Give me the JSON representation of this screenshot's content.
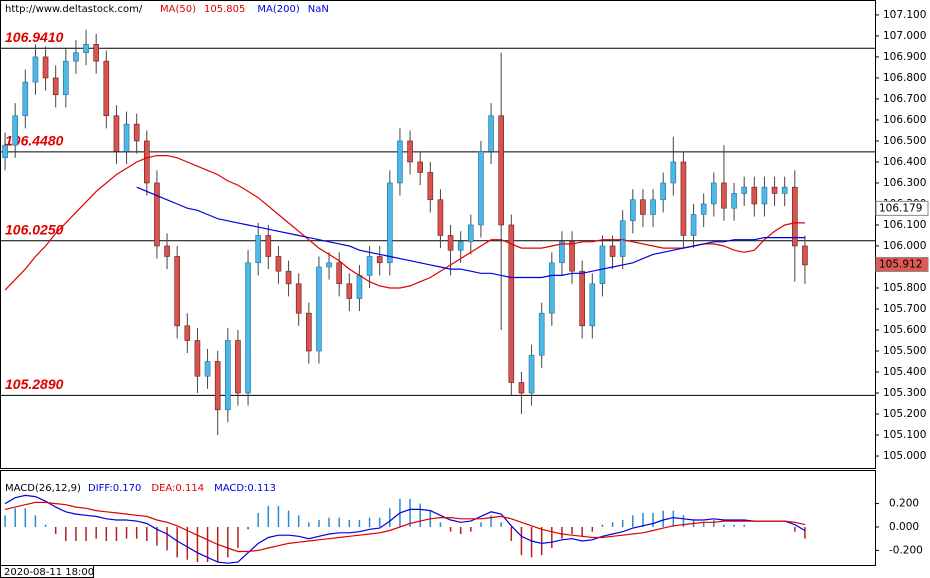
{
  "chart_data": [
    {
      "type": "candlestick",
      "source": "http://www.deltastock.com/",
      "x_label": "2020-08-11 18:00",
      "bull_color": "#4db8e8",
      "bear_color": "#d9534f",
      "open": [
        106.42,
        106.48,
        106.62,
        106.78,
        106.9,
        106.8,
        106.72,
        106.88,
        106.92,
        106.96,
        106.88,
        106.62,
        106.45,
        106.58,
        106.5,
        106.3,
        106.0,
        105.95,
        105.62,
        105.55,
        105.38,
        105.45,
        105.22,
        105.55,
        105.3,
        105.92,
        106.05,
        105.95,
        105.88,
        105.82,
        105.68,
        105.5,
        105.9,
        105.92,
        105.82,
        105.75,
        105.86,
        105.95,
        105.92,
        106.3,
        106.5,
        106.4,
        106.35,
        106.22,
        106.05,
        105.98,
        106.02,
        106.1,
        106.45,
        106.62,
        106.1,
        105.35,
        105.3,
        105.48,
        105.68,
        105.92,
        106.02,
        105.88,
        105.62,
        105.82,
        106.0,
        105.95,
        106.12,
        106.22,
        106.15,
        106.22,
        106.3,
        106.4,
        106.05,
        106.15,
        106.2,
        106.3,
        106.18,
        106.25,
        106.28,
        106.2,
        106.28,
        106.25,
        106.28,
        106.0
      ],
      "high": [
        106.54,
        106.68,
        106.84,
        106.96,
        106.95,
        106.86,
        106.94,
        106.98,
        107.03,
        107.01,
        106.93,
        106.67,
        106.64,
        106.63,
        106.55,
        106.36,
        106.06,
        106.0,
        105.68,
        105.61,
        105.51,
        105.5,
        105.61,
        105.6,
        105.98,
        106.11,
        106.1,
        106.0,
        105.93,
        105.87,
        105.73,
        105.95,
        105.97,
        105.97,
        105.87,
        105.91,
        106.0,
        106.0,
        106.36,
        106.56,
        106.55,
        106.45,
        106.4,
        106.27,
        106.1,
        106.07,
        106.15,
        106.5,
        106.68,
        106.92,
        106.15,
        105.4,
        105.53,
        105.73,
        105.97,
        106.07,
        106.07,
        105.93,
        105.87,
        106.05,
        106.05,
        106.17,
        106.27,
        106.27,
        106.27,
        106.35,
        106.52,
        106.45,
        106.2,
        106.25,
        106.35,
        106.48,
        106.3,
        106.33,
        106.33,
        106.33,
        106.33,
        106.33,
        106.36,
        106.05
      ],
      "low": [
        106.36,
        106.42,
        106.56,
        106.72,
        106.74,
        106.66,
        106.66,
        106.82,
        106.86,
        106.82,
        106.56,
        106.39,
        106.39,
        106.44,
        106.24,
        105.94,
        105.89,
        105.56,
        105.49,
        105.3,
        105.32,
        105.1,
        105.16,
        105.24,
        105.24,
        105.86,
        105.89,
        105.82,
        105.76,
        105.62,
        105.44,
        105.44,
        105.84,
        105.76,
        105.69,
        105.69,
        105.8,
        105.86,
        105.86,
        106.24,
        106.34,
        106.29,
        106.16,
        105.99,
        105.86,
        105.92,
        105.96,
        106.04,
        106.39,
        105.6,
        105.29,
        105.2,
        105.24,
        105.42,
        105.62,
        105.86,
        105.82,
        105.56,
        105.56,
        105.76,
        105.89,
        105.89,
        106.06,
        106.09,
        106.09,
        106.16,
        106.24,
        105.99,
        105.99,
        106.09,
        106.14,
        106.12,
        106.12,
        106.19,
        106.14,
        106.14,
        106.19,
        106.19,
        105.83,
        105.82
      ],
      "close": [
        106.48,
        106.62,
        106.78,
        106.9,
        106.8,
        106.72,
        106.88,
        106.92,
        106.96,
        106.88,
        106.62,
        106.45,
        106.58,
        106.5,
        106.3,
        106.0,
        105.95,
        105.62,
        105.55,
        105.38,
        105.45,
        105.22,
        105.55,
        105.3,
        105.92,
        106.05,
        105.95,
        105.88,
        105.82,
        105.68,
        105.5,
        105.9,
        105.92,
        105.82,
        105.75,
        105.86,
        105.95,
        105.92,
        106.3,
        106.5,
        106.4,
        106.35,
        106.22,
        106.05,
        105.98,
        106.02,
        106.1,
        106.45,
        106.62,
        106.1,
        105.35,
        105.3,
        105.48,
        105.68,
        105.92,
        106.02,
        105.88,
        105.62,
        105.82,
        106.0,
        105.95,
        106.12,
        106.22,
        106.15,
        106.22,
        106.3,
        106.4,
        106.05,
        106.15,
        106.2,
        106.3,
        106.18,
        106.25,
        106.28,
        106.2,
        106.28,
        106.25,
        106.28,
        106.0,
        105.91
      ],
      "series": [
        {
          "name": "MA(50)",
          "legend_value": 105.805,
          "color": "#e00000",
          "values": [
            105.79,
            105.84,
            105.89,
            105.95,
            106.0,
            106.06,
            106.11,
            106.16,
            106.21,
            106.26,
            106.3,
            106.34,
            106.37,
            106.4,
            106.42,
            106.43,
            106.43,
            106.42,
            106.4,
            106.38,
            106.36,
            106.34,
            106.31,
            106.29,
            106.26,
            106.23,
            106.19,
            106.15,
            106.11,
            106.07,
            106.03,
            105.99,
            105.96,
            105.93,
            105.89,
            105.86,
            105.83,
            105.81,
            105.8,
            105.8,
            105.81,
            105.83,
            105.85,
            105.88,
            105.91,
            105.94,
            105.97,
            106.0,
            106.03,
            106.03,
            106.01,
            105.99,
            105.99,
            105.99,
            106.0,
            106.01,
            106.01,
            106.02,
            106.02,
            106.03,
            106.03,
            106.03,
            106.02,
            106.01,
            106.0,
            105.99,
            105.99,
            105.99,
            106.0,
            106.01,
            106.01,
            106.0,
            105.98,
            105.97,
            105.98,
            106.03,
            106.07,
            106.1,
            106.11,
            106.11
          ]
        },
        {
          "name": "MA(200)",
          "legend_value": "NaN",
          "color": "#0000e0",
          "values": [
            null,
            null,
            null,
            null,
            null,
            null,
            null,
            null,
            null,
            null,
            null,
            null,
            null,
            106.28,
            106.26,
            106.24,
            106.22,
            106.2,
            106.18,
            106.17,
            106.15,
            106.13,
            106.12,
            106.11,
            106.1,
            106.09,
            106.08,
            106.07,
            106.06,
            106.05,
            106.04,
            106.03,
            106.02,
            106.01,
            106.0,
            105.98,
            105.97,
            105.96,
            105.95,
            105.94,
            105.93,
            105.92,
            105.91,
            105.9,
            105.89,
            105.89,
            105.88,
            105.87,
            105.87,
            105.86,
            105.85,
            105.85,
            105.85,
            105.85,
            105.86,
            105.86,
            105.87,
            105.87,
            105.88,
            105.89,
            105.9,
            105.91,
            105.92,
            105.94,
            105.96,
            105.97,
            105.98,
            105.99,
            106.0,
            106.01,
            106.02,
            106.02,
            106.03,
            106.03,
            106.03,
            106.04,
            106.04,
            106.04,
            106.04,
            106.04
          ]
        }
      ],
      "levels": [
        {
          "value": 106.941,
          "label": "106.9410"
        },
        {
          "value": 106.448,
          "label": "106.4480"
        },
        {
          "value": 106.025,
          "label": "106.0250"
        },
        {
          "value": 105.289,
          "label": "105.2890"
        }
      ],
      "price_markers": [
        {
          "value": 106.179,
          "color": "#ffffff"
        },
        {
          "value": 105.912,
          "color": "#e05a55"
        }
      ],
      "ylim": [
        104.943,
        107.171
      ],
      "yticks": [
        {
          "value": 107.1,
          "label": "107.100"
        },
        {
          "value": 107.0,
          "label": "107.000"
        },
        {
          "value": 106.9,
          "label": "106.900"
        },
        {
          "value": 106.8,
          "label": "106.800"
        },
        {
          "value": 106.7,
          "label": "106.700"
        },
        {
          "value": 106.6,
          "label": "106.600"
        },
        {
          "value": 106.5,
          "label": "106.500"
        },
        {
          "value": 106.4,
          "label": "106.400"
        },
        {
          "value": 106.3,
          "label": "106.300"
        },
        {
          "value": 106.2,
          "label": "106.200"
        },
        {
          "value": 106.1,
          "label": "106.100"
        },
        {
          "value": 106.0,
          "label": "106.000"
        },
        {
          "value": 105.9,
          "label": "105.900"
        },
        {
          "value": 105.8,
          "label": "105.800"
        },
        {
          "value": 105.7,
          "label": "105.700"
        },
        {
          "value": 105.6,
          "label": "105.600"
        },
        {
          "value": 105.5,
          "label": "105.500"
        },
        {
          "value": 105.4,
          "label": "105.400"
        },
        {
          "value": 105.3,
          "label": "105.300"
        },
        {
          "value": 105.2,
          "label": "105.200"
        },
        {
          "value": 105.1,
          "label": "105.100"
        },
        {
          "value": 105.0,
          "label": "105.000"
        }
      ]
    },
    {
      "type": "macd",
      "title": "MACD(26,12,9)",
      "histogram": {
        "name": "MACD:0.113",
        "color": "#2a8ad4",
        "negative_color": "#b02020",
        "values": [
          0.1,
          0.16,
          0.16,
          0.1,
          0.02,
          -0.06,
          -0.12,
          -0.12,
          -0.12,
          -0.1,
          -0.12,
          -0.12,
          -0.1,
          -0.1,
          -0.12,
          -0.16,
          -0.2,
          -0.26,
          -0.28,
          -0.3,
          -0.3,
          -0.3,
          -0.26,
          -0.18,
          -0.02,
          0.12,
          0.18,
          0.18,
          0.14,
          0.1,
          0.04,
          0.06,
          0.08,
          0.08,
          0.06,
          0.06,
          0.08,
          0.08,
          0.16,
          0.24,
          0.24,
          0.2,
          0.14,
          0.04,
          -0.04,
          -0.06,
          -0.04,
          0.04,
          0.1,
          0.04,
          -0.12,
          -0.24,
          -0.26,
          -0.24,
          -0.18,
          -0.1,
          -0.06,
          -0.08,
          -0.04,
          0.02,
          0.04,
          0.06,
          0.1,
          0.12,
          0.12,
          0.14,
          0.14,
          0.1,
          0.06,
          0.04,
          0.06,
          0.02,
          0.02,
          0.02,
          0.0,
          0.0,
          0.0,
          0.0,
          -0.04,
          -0.1
        ]
      },
      "series": [
        {
          "name": "DIFF:0.170",
          "color": "#0000e0",
          "values": [
            0.2,
            0.25,
            0.27,
            0.26,
            0.22,
            0.17,
            0.13,
            0.11,
            0.1,
            0.09,
            0.07,
            0.06,
            0.06,
            0.05,
            0.03,
            -0.02,
            -0.06,
            -0.12,
            -0.17,
            -0.22,
            -0.26,
            -0.3,
            -0.31,
            -0.3,
            -0.22,
            -0.14,
            -0.09,
            -0.07,
            -0.07,
            -0.08,
            -0.1,
            -0.08,
            -0.06,
            -0.05,
            -0.05,
            -0.04,
            -0.02,
            -0.01,
            0.05,
            0.12,
            0.15,
            0.15,
            0.14,
            0.1,
            0.06,
            0.04,
            0.05,
            0.09,
            0.13,
            0.11,
            0.01,
            -0.08,
            -0.12,
            -0.14,
            -0.13,
            -0.11,
            -0.1,
            -0.12,
            -0.11,
            -0.08,
            -0.06,
            -0.04,
            -0.01,
            0.01,
            0.03,
            0.06,
            0.08,
            0.07,
            0.06,
            0.06,
            0.07,
            0.06,
            0.06,
            0.06,
            0.05,
            0.05,
            0.05,
            0.05,
            0.02,
            -0.03
          ]
        },
        {
          "name": "DEA:0.114",
          "color": "#e00000",
          "values": [
            0.15,
            0.17,
            0.19,
            0.21,
            0.21,
            0.2,
            0.19,
            0.17,
            0.16,
            0.14,
            0.13,
            0.12,
            0.11,
            0.1,
            0.09,
            0.06,
            0.04,
            0.01,
            -0.03,
            -0.07,
            -0.11,
            -0.15,
            -0.18,
            -0.21,
            -0.21,
            -0.2,
            -0.18,
            -0.16,
            -0.14,
            -0.13,
            -0.12,
            -0.11,
            -0.1,
            -0.09,
            -0.08,
            -0.07,
            -0.06,
            -0.05,
            -0.03,
            0.0,
            0.03,
            0.05,
            0.07,
            0.08,
            0.08,
            0.07,
            0.07,
            0.07,
            0.08,
            0.09,
            0.07,
            0.04,
            0.01,
            -0.02,
            -0.04,
            -0.06,
            -0.07,
            -0.08,
            -0.09,
            -0.09,
            -0.08,
            -0.07,
            -0.06,
            -0.05,
            -0.03,
            -0.01,
            0.01,
            0.02,
            0.03,
            0.04,
            0.04,
            0.05,
            0.05,
            0.05,
            0.05,
            0.05,
            0.05,
            0.05,
            0.04,
            0.02
          ]
        }
      ],
      "ylim": [
        -0.325,
        0.487
      ],
      "yticks": [
        {
          "value": 0.2,
          "label": "0.200"
        },
        {
          "value": 0,
          "label": "0.000"
        },
        {
          "value": -0.2,
          "label": "-0.200"
        }
      ]
    }
  ]
}
